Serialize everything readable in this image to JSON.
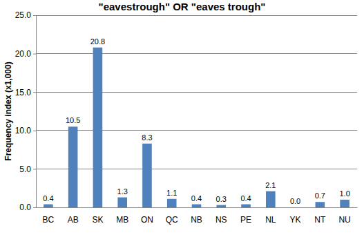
{
  "chart_data": {
    "type": "bar",
    "title": "\"eavestrough\" OR \"eaves trough\"",
    "y_label": "Frequency index (x1,000)",
    "categories": [
      "BC",
      "AB",
      "SK",
      "MB",
      "ON",
      "QC",
      "NB",
      "NS",
      "PE",
      "NL",
      "YK",
      "NT",
      "NU"
    ],
    "values": [
      0.4,
      10.5,
      20.8,
      1.3,
      8.3,
      1.1,
      0.4,
      0.3,
      0.4,
      2.1,
      0.0,
      0.7,
      1.0
    ],
    "value_labels": [
      "0.4",
      "10.5",
      "20.8",
      "1.3",
      "8.3",
      "1.1",
      "0.4",
      "0.3",
      "0.4",
      "2.1",
      "0.0",
      "0.7",
      "1.0"
    ],
    "color": "#4f81bd",
    "ylim": [
      0,
      25
    ],
    "yticks": [
      {
        "value": 0,
        "label": "0.0"
      },
      {
        "value": 5,
        "label": "5.0"
      },
      {
        "value": 10,
        "label": "10.0"
      },
      {
        "value": 15,
        "label": "15.0"
      },
      {
        "value": 20,
        "label": "20.0"
      },
      {
        "value": 25,
        "label": "25.0"
      }
    ],
    "grid": true,
    "data_labels": true
  }
}
